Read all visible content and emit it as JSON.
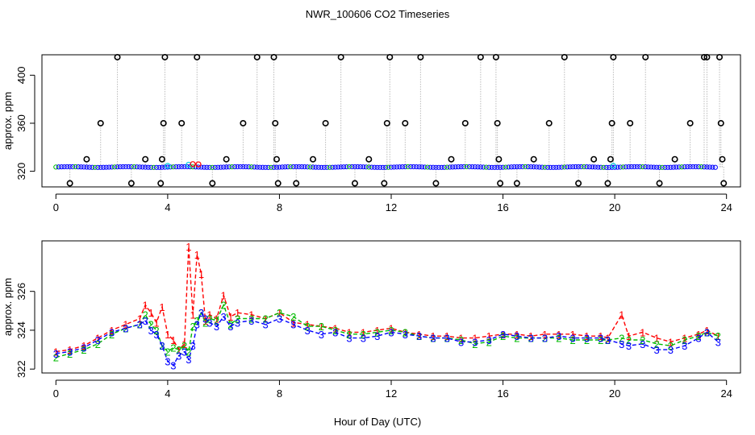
{
  "title": "NWR_100606  CO2 Timeseries",
  "colors": {
    "axis": "#000000",
    "series1": "#ff0000",
    "series2": "#00bb00",
    "series3": "#0000ff",
    "raw_marker": "#000000",
    "dotted_line": "#999999",
    "cyan": "#00d0e0"
  },
  "chart_data": [
    {
      "type": "scatter",
      "panel": "top",
      "xlabel": "",
      "ylabel": "approx. ppm",
      "xlim": [
        -0.5,
        24.5
      ],
      "ylim": [
        307,
        417
      ],
      "xticks": [
        0,
        4,
        8,
        12,
        16,
        20,
        24
      ],
      "xtick_labels": [
        "0",
        "4",
        "8",
        "12",
        "16",
        "20",
        "24"
      ],
      "yticks": [
        320,
        360,
        400
      ],
      "ytick_labels": [
        "320",
        "360",
        "400"
      ],
      "baseline_ppm": 323.5,
      "spikes": [
        {
          "x": 0.5,
          "y": 310
        },
        {
          "x": 1.1,
          "y": 330
        },
        {
          "x": 1.6,
          "y": 360
        },
        {
          "x": 2.2,
          "y": 415
        },
        {
          "x": 2.7,
          "y": 310
        },
        {
          "x": 3.2,
          "y": 330
        },
        {
          "x": 3.75,
          "y": 310
        },
        {
          "x": 3.8,
          "y": 330
        },
        {
          "x": 3.85,
          "y": 360
        },
        {
          "x": 3.9,
          "y": 415
        },
        {
          "x": 4.5,
          "y": 360
        },
        {
          "x": 5.05,
          "y": 415
        },
        {
          "x": 5.6,
          "y": 310
        },
        {
          "x": 6.1,
          "y": 330
        },
        {
          "x": 6.7,
          "y": 360
        },
        {
          "x": 7.2,
          "y": 415
        },
        {
          "x": 7.8,
          "y": 415
        },
        {
          "x": 7.85,
          "y": 360
        },
        {
          "x": 7.9,
          "y": 330
        },
        {
          "x": 7.95,
          "y": 310
        },
        {
          "x": 8.6,
          "y": 310
        },
        {
          "x": 9.2,
          "y": 330
        },
        {
          "x": 9.65,
          "y": 360
        },
        {
          "x": 10.2,
          "y": 415
        },
        {
          "x": 10.7,
          "y": 310
        },
        {
          "x": 11.2,
          "y": 330
        },
        {
          "x": 11.75,
          "y": 310
        },
        {
          "x": 11.85,
          "y": 360
        },
        {
          "x": 11.95,
          "y": 415
        },
        {
          "x": 12.5,
          "y": 360
        },
        {
          "x": 13.05,
          "y": 415
        },
        {
          "x": 13.6,
          "y": 310
        },
        {
          "x": 14.15,
          "y": 330
        },
        {
          "x": 14.65,
          "y": 360
        },
        {
          "x": 15.2,
          "y": 415
        },
        {
          "x": 15.75,
          "y": 415
        },
        {
          "x": 15.8,
          "y": 360
        },
        {
          "x": 15.85,
          "y": 330
        },
        {
          "x": 15.9,
          "y": 310
        },
        {
          "x": 16.5,
          "y": 310
        },
        {
          "x": 17.1,
          "y": 330
        },
        {
          "x": 17.65,
          "y": 360
        },
        {
          "x": 18.2,
          "y": 415
        },
        {
          "x": 18.7,
          "y": 310
        },
        {
          "x": 19.25,
          "y": 330
        },
        {
          "x": 19.75,
          "y": 310
        },
        {
          "x": 19.85,
          "y": 330
        },
        {
          "x": 19.9,
          "y": 360
        },
        {
          "x": 19.95,
          "y": 415
        },
        {
          "x": 20.55,
          "y": 360
        },
        {
          "x": 21.1,
          "y": 415
        },
        {
          "x": 21.6,
          "y": 310
        },
        {
          "x": 22.15,
          "y": 330
        },
        {
          "x": 22.7,
          "y": 360
        },
        {
          "x": 23.2,
          "y": 415
        },
        {
          "x": 23.3,
          "y": 415
        },
        {
          "x": 23.75,
          "y": 415
        },
        {
          "x": 23.8,
          "y": 360
        },
        {
          "x": 23.85,
          "y": 330
        },
        {
          "x": 23.9,
          "y": 310
        }
      ]
    },
    {
      "type": "line",
      "panel": "bottom",
      "xlabel": "Hour of Day (UTC)",
      "ylabel": "approx. ppm",
      "xlim": [
        -0.5,
        24.5
      ],
      "ylim": [
        321.8,
        328.6
      ],
      "xticks": [
        0,
        4,
        8,
        12,
        16,
        20,
        24
      ],
      "xtick_labels": [
        "0",
        "4",
        "8",
        "12",
        "16",
        "20",
        "24"
      ],
      "yticks": [
        322,
        324,
        326
      ],
      "ytick_labels": [
        "322",
        "324",
        "326"
      ],
      "x": [
        0,
        0.5,
        1,
        1.5,
        2,
        2.5,
        3,
        3.2,
        3.4,
        3.6,
        3.8,
        4,
        4.2,
        4.4,
        4.6,
        4.75,
        4.9,
        5.05,
        5.2,
        5.35,
        5.5,
        5.75,
        6,
        6.25,
        6.5,
        7,
        7.5,
        8,
        8.5,
        9,
        9.5,
        10,
        10.5,
        11,
        11.5,
        12,
        12.5,
        13,
        13.5,
        14,
        14.5,
        15,
        15.5,
        16,
        16.5,
        17,
        17.5,
        18,
        18.5,
        19,
        19.5,
        19.75,
        20.25,
        20.5,
        21,
        21.5,
        22,
        22.5,
        23,
        23.3,
        23.7
      ],
      "series": [
        {
          "name": "1",
          "values": [
            322.9,
            323.0,
            323.2,
            323.6,
            324.0,
            324.3,
            324.6,
            325.3,
            324.9,
            324.4,
            325.2,
            323.8,
            323.5,
            323.0,
            323.3,
            328.3,
            324.8,
            327.9,
            326.9,
            324.5,
            324.8,
            324.6,
            325.8,
            324.7,
            324.9,
            324.8,
            324.6,
            324.9,
            324.4,
            324.3,
            324.2,
            324.1,
            323.9,
            323.9,
            324.0,
            324.1,
            323.9,
            323.8,
            323.7,
            323.7,
            323.6,
            323.6,
            323.7,
            323.8,
            323.8,
            323.7,
            323.8,
            323.8,
            323.8,
            323.7,
            323.7,
            323.6,
            324.8,
            323.7,
            323.9,
            323.6,
            323.4,
            323.6,
            323.8,
            324.0,
            323.7
          ]
        },
        {
          "name": "2",
          "values": [
            322.6,
            322.8,
            323.0,
            323.3,
            323.8,
            324.1,
            324.3,
            324.8,
            324.3,
            324.0,
            323.2,
            322.9,
            323.1,
            323.0,
            323.2,
            322.9,
            324.2,
            324.5,
            324.9,
            324.4,
            324.6,
            324.5,
            325.3,
            324.3,
            324.6,
            324.6,
            324.6,
            324.9,
            324.7,
            324.2,
            324.2,
            324.0,
            323.8,
            323.8,
            323.9,
            324.0,
            323.9,
            323.7,
            323.6,
            323.6,
            323.5,
            323.3,
            323.4,
            323.7,
            323.6,
            323.6,
            323.6,
            323.6,
            323.5,
            323.5,
            323.5,
            323.5,
            323.6,
            323.5,
            323.5,
            323.3,
            323.2,
            323.5,
            323.7,
            323.9,
            323.7
          ]
        },
        {
          "name": "3",
          "values": [
            322.8,
            322.9,
            323.1,
            323.5,
            323.9,
            324.1,
            324.3,
            324.5,
            324.0,
            323.8,
            323.2,
            322.4,
            322.2,
            322.7,
            322.9,
            322.5,
            323.2,
            324.3,
            324.9,
            324.6,
            324.4,
            324.2,
            324.7,
            324.2,
            324.4,
            324.5,
            324.3,
            324.6,
            324.3,
            324.0,
            323.8,
            323.9,
            323.6,
            323.6,
            323.7,
            323.9,
            323.8,
            323.7,
            323.6,
            323.6,
            323.4,
            323.4,
            323.5,
            323.8,
            323.7,
            323.6,
            323.6,
            323.7,
            323.6,
            323.6,
            323.6,
            323.5,
            323.3,
            323.2,
            323.3,
            323.0,
            323.0,
            323.2,
            323.6,
            323.9,
            323.4
          ]
        }
      ]
    }
  ]
}
